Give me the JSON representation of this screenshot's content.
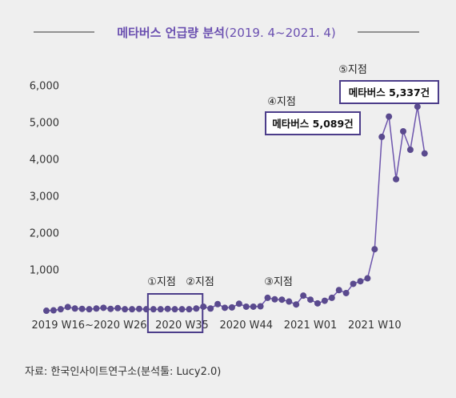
{
  "header": {
    "title": "메타버스 언급량 분석",
    "period": "(2019. 4~2021. 4)"
  },
  "source": "자료: 한국인사이트연구소(분석툴: Lucy2.0)",
  "colors": {
    "line": "#6d55ad",
    "marker": "#5a4a8e",
    "title": "#6a4fb0",
    "box_border": "#4c3d8a",
    "background": "#efefef"
  },
  "chart_data": {
    "type": "line",
    "title": "메타버스 언급량 분석(2019. 4~2021. 4)",
    "xlabel": "",
    "ylabel": "",
    "ylim": [
      0,
      6000
    ],
    "yticks": [
      1000,
      2000,
      3000,
      4000,
      5000,
      6000
    ],
    "ytick_labels": [
      "1,000",
      "2,000",
      "3,000",
      "4,000",
      "5,000",
      "6,000"
    ],
    "grid": false,
    "xtick_labels": [
      {
        "label": "2019 W16~2020 W26",
        "index": 6
      },
      {
        "label": "2020 W35",
        "index": 19
      },
      {
        "label": "2020 W44",
        "index": 28
      },
      {
        "label": "2021 W01",
        "index": 37
      },
      {
        "label": "2021 W10",
        "index": 46
      }
    ],
    "series": [
      {
        "values": [
          -120,
          -110,
          -80,
          -20,
          -60,
          -70,
          -80,
          -60,
          -40,
          -70,
          -50,
          -80,
          -80,
          -70,
          -80,
          -80,
          -80,
          -70,
          -80,
          -80,
          -80,
          -60,
          -10,
          -60,
          60,
          -40,
          -30,
          70,
          -10,
          -10,
          0,
          230,
          190,
          180,
          130,
          50,
          290,
          180,
          80,
          150,
          230,
          440,
          360,
          610,
          680,
          760,
          1550,
          4600,
          5150,
          3450,
          4750,
          4250,
          5420,
          4150
        ]
      }
    ],
    "annotations": [
      {
        "label": "①지점",
        "index": 17
      },
      {
        "label": "②지점",
        "index": 22
      },
      {
        "label": "③지점",
        "index": 33
      },
      {
        "label": "④지점",
        "index": 48,
        "callout": "메타버스 5,089건"
      },
      {
        "label": "⑤지점",
        "index": 52,
        "callout": "메타버스 5,337건"
      }
    ],
    "highlight": {
      "label": "2020 W35",
      "range": [
        14,
        22
      ]
    }
  }
}
